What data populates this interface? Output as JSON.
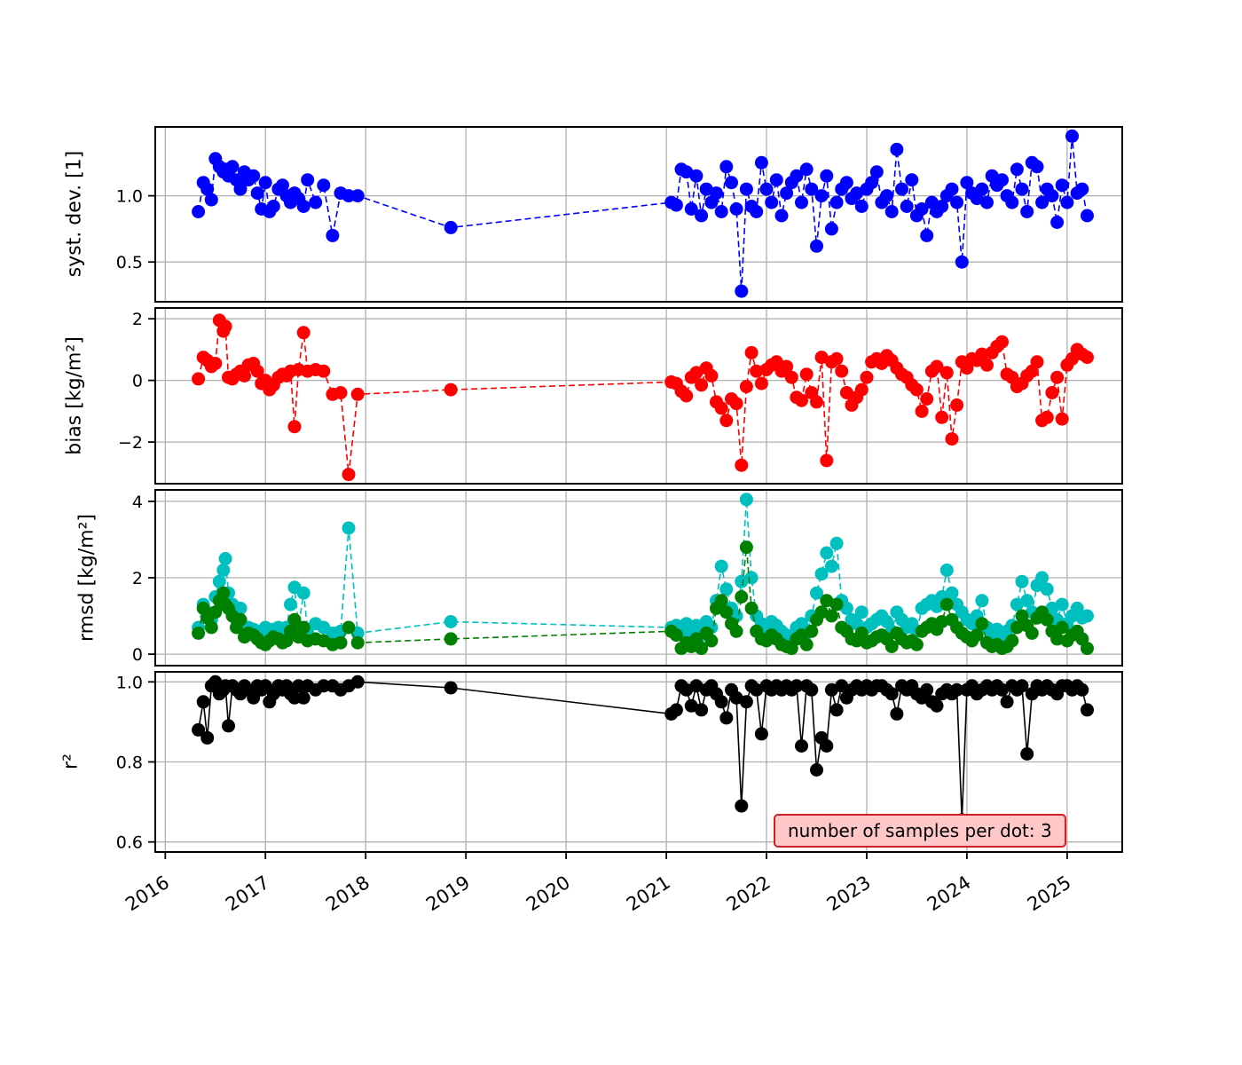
{
  "figure": {
    "background": "#ffffff"
  },
  "annotation": {
    "text": "number of samples per dot: 3",
    "bg": "#ffc8c8",
    "border": "#cc2222"
  },
  "chart_data": {
    "type": "scatter",
    "title": "",
    "grid": true,
    "grid_color": "#b0b0b0",
    "legend_position": "none",
    "xlim": [
      2015.9,
      2025.55
    ],
    "xticks": [
      2016,
      2017,
      2018,
      2019,
      2020,
      2021,
      2022,
      2023,
      2024,
      2025
    ],
    "xtick_labels": [
      "2016",
      "2017",
      "2018",
      "2019",
      "2020",
      "2021",
      "2022",
      "2023",
      "2024",
      "2025"
    ],
    "x": [
      2016.33,
      2016.38,
      2016.42,
      2016.46,
      2016.5,
      2016.54,
      2016.58,
      2016.6,
      2016.63,
      2016.67,
      2016.71,
      2016.75,
      2016.79,
      2016.83,
      2016.88,
      2016.92,
      2016.96,
      2017.0,
      2017.04,
      2017.08,
      2017.13,
      2017.17,
      2017.21,
      2017.25,
      2017.29,
      2017.33,
      2017.38,
      2017.42,
      2017.5,
      2017.58,
      2017.67,
      2017.75,
      2017.83,
      2017.92,
      2018.85,
      2021.05,
      2021.1,
      2021.15,
      2021.2,
      2021.25,
      2021.3,
      2021.35,
      2021.4,
      2021.45,
      2021.5,
      2021.55,
      2021.6,
      2021.65,
      2021.7,
      2021.75,
      2021.8,
      2021.85,
      2021.9,
      2021.95,
      2022.0,
      2022.05,
      2022.1,
      2022.15,
      2022.2,
      2022.25,
      2022.3,
      2022.35,
      2022.4,
      2022.45,
      2022.5,
      2022.55,
      2022.6,
      2022.65,
      2022.7,
      2022.75,
      2022.8,
      2022.85,
      2022.9,
      2022.95,
      2023.0,
      2023.05,
      2023.1,
      2023.15,
      2023.2,
      2023.25,
      2023.3,
      2023.35,
      2023.4,
      2023.45,
      2023.5,
      2023.55,
      2023.6,
      2023.65,
      2023.7,
      2023.75,
      2023.8,
      2023.85,
      2023.9,
      2023.95,
      2024.0,
      2024.05,
      2024.1,
      2024.15,
      2024.2,
      2024.25,
      2024.3,
      2024.35,
      2024.4,
      2024.45,
      2024.5,
      2024.55,
      2024.6,
      2024.65,
      2024.7,
      2024.75,
      2024.8,
      2024.85,
      2024.9,
      2024.95,
      2025.0,
      2025.05,
      2025.1,
      2025.15,
      2025.2
    ],
    "panels": [
      {
        "name": "syst-dev",
        "ylabel": "syst. dev. [1]",
        "ylim": [
          0.2,
          1.52
        ],
        "yticks": [
          0.5,
          1.0
        ],
        "ytick_labels": [
          "0.5",
          "1.0"
        ],
        "series": [
          {
            "name": "syst-dev",
            "color": "#0000ff",
            "line": "dashed",
            "values": [
              0.88,
              1.1,
              1.05,
              0.97,
              1.28,
              1.22,
              1.18,
              1.2,
              1.15,
              1.22,
              1.12,
              1.05,
              1.18,
              1.12,
              1.15,
              1.02,
              0.9,
              1.1,
              0.88,
              0.92,
              1.05,
              1.08,
              1.0,
              0.95,
              1.02,
              0.98,
              0.92,
              1.12,
              0.95,
              1.08,
              0.7,
              1.02,
              1.0,
              1.0,
              0.76,
              0.95,
              0.93,
              1.2,
              1.18,
              0.9,
              1.15,
              0.85,
              1.05,
              0.95,
              1.02,
              0.88,
              1.22,
              1.1,
              0.9,
              0.28,
              1.05,
              0.92,
              0.88,
              1.25,
              1.05,
              0.95,
              1.12,
              0.85,
              1.02,
              1.1,
              1.15,
              0.95,
              1.2,
              1.05,
              0.62,
              1.0,
              1.15,
              0.75,
              0.95,
              1.05,
              1.1,
              0.98,
              1.02,
              0.92,
              1.05,
              1.1,
              1.18,
              0.95,
              1.0,
              0.88,
              1.35,
              1.05,
              0.92,
              1.12,
              0.85,
              0.9,
              0.7,
              0.95,
              0.88,
              0.92,
              1.0,
              1.05,
              0.95,
              0.5,
              1.1,
              1.02,
              0.98,
              1.05,
              0.95,
              1.15,
              1.08,
              1.12,
              1.0,
              0.95,
              1.2,
              1.05,
              0.88,
              1.25,
              1.22,
              0.95,
              1.05,
              1.0,
              0.8,
              1.08,
              0.95,
              1.45,
              1.02,
              1.05,
              0.85
            ]
          }
        ]
      },
      {
        "name": "bias",
        "ylabel": "bias [kg/m²]",
        "ylim": [
          -3.35,
          2.35
        ],
        "yticks": [
          -2,
          0,
          2
        ],
        "ytick_labels": [
          "−2",
          "0",
          "2"
        ],
        "series": [
          {
            "name": "bias",
            "color": "#ff0000",
            "line": "dashed",
            "values": [
              0.05,
              0.75,
              0.65,
              0.45,
              0.55,
              1.95,
              1.6,
              1.75,
              0.1,
              0.05,
              0.2,
              0.3,
              0.15,
              0.5,
              0.55,
              0.3,
              -0.1,
              0.0,
              -0.3,
              -0.15,
              0.1,
              0.2,
              0.15,
              0.3,
              -1.5,
              0.35,
              1.55,
              0.3,
              0.35,
              0.3,
              -0.45,
              -0.4,
              -3.05,
              -0.45,
              -0.3,
              -0.05,
              -0.1,
              -0.35,
              -0.5,
              0.1,
              0.25,
              -0.15,
              0.4,
              0.15,
              -0.7,
              -0.9,
              -1.3,
              -0.6,
              -0.75,
              -2.75,
              -0.2,
              0.9,
              0.3,
              -0.1,
              0.35,
              0.5,
              0.6,
              0.3,
              0.45,
              0.1,
              -0.55,
              -0.65,
              0.2,
              -0.4,
              -0.7,
              0.75,
              -2.6,
              0.6,
              0.7,
              0.3,
              -0.4,
              -0.8,
              -0.55,
              -0.3,
              0.1,
              0.6,
              0.7,
              0.55,
              0.8,
              0.65,
              0.4,
              0.2,
              0.1,
              -0.15,
              -0.3,
              -1.0,
              -0.6,
              0.3,
              0.45,
              -1.2,
              0.25,
              -1.9,
              -0.8,
              0.6,
              0.4,
              0.7,
              0.65,
              0.85,
              0.5,
              0.9,
              1.1,
              1.25,
              0.2,
              0.1,
              -0.2,
              -0.1,
              0.15,
              0.3,
              0.6,
              -1.3,
              -1.2,
              -0.4,
              0.1,
              -1.25,
              0.5,
              0.7,
              1.0,
              0.85,
              0.75
            ]
          }
        ]
      },
      {
        "name": "rmsd",
        "ylabel": "rmsd [kg/m²]",
        "ylim": [
          -0.3,
          4.3
        ],
        "yticks": [
          0,
          2,
          4
        ],
        "ytick_labels": [
          "0",
          "2",
          "4"
        ],
        "series": [
          {
            "name": "rmsd-cyan",
            "color": "#00bfbf",
            "line": "dashed",
            "values": [
              0.7,
              1.3,
              1.1,
              0.9,
              1.5,
              1.9,
              2.2,
              2.5,
              1.6,
              1.3,
              0.9,
              1.2,
              0.6,
              0.7,
              0.65,
              0.55,
              0.6,
              0.7,
              0.55,
              0.65,
              0.7,
              0.6,
              0.7,
              1.3,
              1.75,
              0.7,
              1.6,
              0.65,
              0.8,
              0.7,
              0.55,
              0.6,
              3.3,
              0.55,
              0.85,
              0.7,
              0.75,
              0.55,
              0.8,
              0.6,
              0.75,
              0.5,
              0.85,
              0.7,
              1.4,
              2.3,
              1.7,
              1.2,
              1.0,
              1.9,
              4.05,
              2.0,
              1.0,
              0.8,
              0.7,
              0.85,
              0.75,
              0.6,
              0.5,
              0.45,
              0.7,
              0.8,
              0.55,
              1.0,
              1.6,
              2.1,
              2.65,
              2.3,
              2.9,
              1.4,
              1.2,
              0.9,
              0.8,
              1.1,
              0.7,
              0.8,
              0.9,
              1.0,
              0.85,
              0.6,
              1.1,
              0.9,
              0.7,
              0.8,
              0.6,
              1.2,
              1.3,
              1.4,
              1.25,
              1.5,
              2.2,
              1.6,
              1.3,
              1.1,
              0.9,
              0.8,
              1.0,
              1.4,
              0.7,
              0.55,
              0.65,
              0.5,
              0.6,
              0.75,
              1.3,
              1.9,
              1.4,
              1.1,
              1.8,
              2.0,
              1.7,
              1.2,
              0.9,
              1.3,
              0.8,
              1.0,
              1.2,
              0.95,
              1.0
            ]
          },
          {
            "name": "rmsd-green",
            "color": "#008000",
            "line": "dashed",
            "values": [
              0.55,
              1.2,
              0.95,
              0.7,
              1.1,
              1.4,
              1.6,
              1.3,
              1.2,
              1.0,
              0.7,
              0.9,
              0.45,
              0.55,
              0.5,
              0.4,
              0.3,
              0.25,
              0.35,
              0.45,
              0.4,
              0.3,
              0.35,
              0.6,
              0.9,
              0.45,
              0.7,
              0.35,
              0.4,
              0.35,
              0.25,
              0.3,
              0.7,
              0.3,
              0.4,
              0.6,
              0.5,
              0.15,
              0.3,
              0.2,
              0.4,
              0.15,
              0.55,
              0.35,
              1.2,
              1.4,
              1.1,
              0.8,
              0.6,
              1.5,
              2.8,
              1.2,
              0.6,
              0.4,
              0.35,
              0.5,
              0.4,
              0.25,
              0.2,
              0.15,
              0.4,
              0.5,
              0.25,
              0.6,
              0.9,
              1.1,
              1.4,
              1.0,
              1.3,
              0.7,
              0.6,
              0.4,
              0.35,
              0.55,
              0.3,
              0.35,
              0.45,
              0.5,
              0.4,
              0.2,
              0.55,
              0.4,
              0.3,
              0.35,
              0.25,
              0.6,
              0.7,
              0.8,
              0.65,
              0.85,
              1.3,
              0.9,
              0.7,
              0.55,
              0.45,
              0.35,
              0.5,
              0.8,
              0.3,
              0.2,
              0.25,
              0.15,
              0.2,
              0.35,
              0.7,
              1.0,
              0.75,
              0.55,
              0.95,
              1.1,
              0.9,
              0.6,
              0.4,
              0.7,
              0.35,
              0.5,
              0.6,
              0.4,
              0.15
            ]
          }
        ]
      },
      {
        "name": "r2",
        "ylabel": "r²",
        "ylim": [
          0.575,
          1.025
        ],
        "yticks": [
          0.6,
          0.8,
          1.0
        ],
        "ytick_labels": [
          "0.6",
          "0.8",
          "1.0"
        ],
        "series": [
          {
            "name": "r2",
            "color": "#000000",
            "line": "solid",
            "values": [
              0.88,
              0.95,
              0.86,
              0.99,
              1.0,
              0.97,
              0.98,
              0.99,
              0.89,
              0.99,
              0.98,
              0.97,
              0.99,
              0.98,
              0.96,
              0.99,
              0.98,
              0.99,
              0.95,
              0.97,
              0.99,
              0.98,
              0.99,
              0.97,
              0.96,
              0.99,
              0.96,
              0.99,
              0.98,
              0.99,
              0.99,
              0.98,
              0.99,
              1.0,
              0.985,
              0.92,
              0.93,
              0.99,
              0.98,
              0.94,
              0.99,
              0.93,
              0.98,
              0.99,
              0.97,
              0.95,
              0.91,
              0.98,
              0.96,
              0.69,
              0.95,
              0.99,
              0.98,
              0.87,
              0.99,
              0.98,
              0.99,
              0.98,
              0.99,
              0.98,
              0.99,
              0.84,
              0.99,
              0.98,
              0.78,
              0.86,
              0.84,
              0.98,
              0.93,
              0.99,
              0.96,
              0.98,
              0.99,
              0.98,
              0.99,
              0.98,
              0.99,
              0.99,
              0.98,
              0.97,
              0.92,
              0.99,
              0.98,
              0.99,
              0.97,
              0.96,
              0.98,
              0.95,
              0.94,
              0.97,
              0.98,
              0.97,
              0.98,
              0.655,
              0.98,
              0.99,
              0.97,
              0.98,
              0.99,
              0.98,
              0.99,
              0.98,
              0.95,
              0.99,
              0.98,
              0.99,
              0.82,
              0.97,
              0.99,
              0.98,
              0.99,
              0.98,
              0.97,
              0.99,
              0.99,
              0.98,
              0.99,
              0.98,
              0.93
            ]
          }
        ]
      }
    ]
  }
}
